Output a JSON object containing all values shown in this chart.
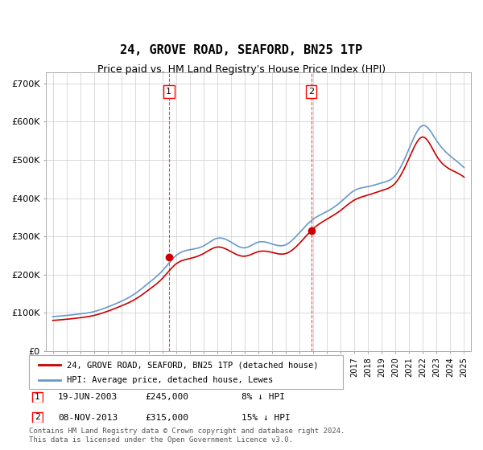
{
  "title": "24, GROVE ROAD, SEAFORD, BN25 1TP",
  "subtitle": "Price paid vs. HM Land Registry's House Price Index (HPI)",
  "legend_line1": "24, GROVE ROAD, SEAFORD, BN25 1TP (detached house)",
  "legend_line2": "HPI: Average price, detached house, Lewes",
  "table": [
    {
      "num": "1",
      "date": "19-JUN-2003",
      "price": "£245,000",
      "hpi": "8% ↓ HPI"
    },
    {
      "num": "2",
      "date": "08-NOV-2013",
      "price": "£315,000",
      "hpi": "15% ↓ HPI"
    }
  ],
  "footer": "Contains HM Land Registry data © Crown copyright and database right 2024.\nThis data is licensed under the Open Government Licence v3.0.",
  "sale1_year": 2003.47,
  "sale1_price": 245000,
  "sale2_year": 2013.85,
  "sale2_price": 315000,
  "vline1_year": 2003.47,
  "vline2_year": 2013.85,
  "red_color": "#cc0000",
  "blue_color": "#6699cc",
  "ylim_min": 0,
  "ylim_max": 730000,
  "yticks": [
    0,
    100000,
    200000,
    300000,
    400000,
    500000,
    600000,
    700000
  ],
  "ytick_labels": [
    "£0",
    "£100K",
    "£200K",
    "£300K",
    "£400K",
    "£500K",
    "£600K",
    "£700K"
  ],
  "xmin": 1994.5,
  "xmax": 2025.5,
  "background_color": "#ffffff",
  "grid_color": "#cccccc"
}
